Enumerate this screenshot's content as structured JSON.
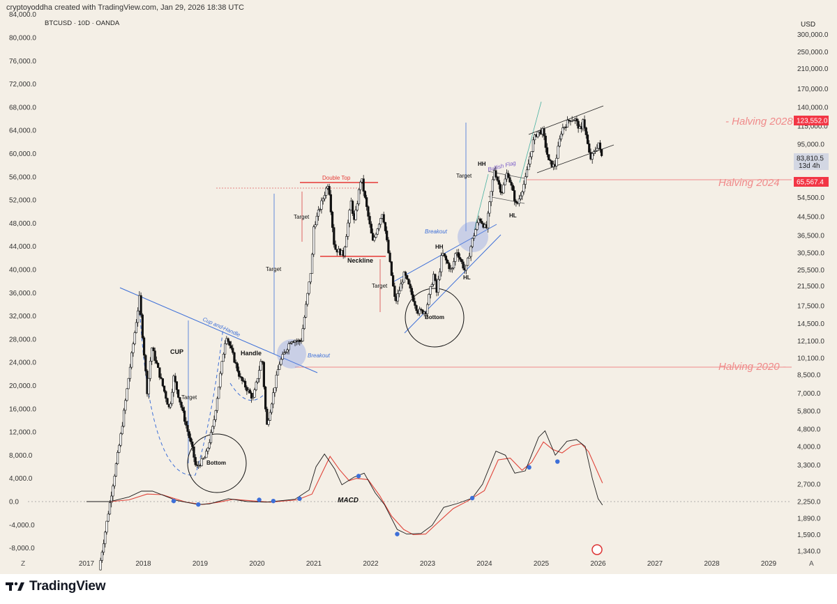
{
  "header": {
    "credit": "cryptoyoddha created with TradingView.com, Jan 29, 2026 18:38 UTC",
    "symbol": "BTCUSD · 10D · OANDA",
    "currency": "USD",
    "corner_left": "Z",
    "corner_right": "A"
  },
  "brand": {
    "name": "TradingView"
  },
  "colors": {
    "background": "#f4efe6",
    "candle_up": "#ffffff",
    "candle_down": "#111111",
    "macd_line": "#1a1a1a",
    "signal_line": "#e0443a",
    "trendline": "#3d6fd8",
    "halving_line": "#f08a8a",
    "price_badge": "#f23645",
    "double_top": "#e53935"
  },
  "chart_data": {
    "type": "candlestick",
    "title": "BTCUSD · 10D · OANDA",
    "left_axis": {
      "ticks": [
        "84,000.0",
        "80,000.0",
        "76,000.0",
        "72,000.0",
        "68,000.0",
        "64,000.0",
        "60,000.0",
        "56,000.0",
        "52,000.0",
        "48,000.0",
        "44,000.0",
        "40,000.0",
        "36,000.0",
        "32,000.0",
        "28,000.0",
        "24,000.0",
        "20,000.0",
        "16,000.0",
        "12,000.0",
        "8,000.0",
        "4,000.0",
        "0.0",
        "-4,000.0",
        "-8,000.0"
      ]
    },
    "right_axis": {
      "scale": "log",
      "ticks": [
        "300,000.0",
        "250,000.0",
        "210,000.0",
        "170,000.0",
        "140,000.0",
        "115,000.0",
        "95,000.0",
        "65,500.0",
        "54,500.0",
        "44,500.0",
        "36,500.0",
        "30,500.0",
        "25,500.0",
        "21,500.0",
        "17,500.0",
        "14,500.0",
        "12,100.0",
        "10,100.0",
        "8,500.0",
        "7,000.0",
        "5,800.0",
        "4,800.0",
        "4,000.0",
        "3,300.0",
        "2,700.0",
        "2,250.0",
        "1,890.0",
        "1,590.0",
        "1,340.0"
      ]
    },
    "x_axis": {
      "ticks": [
        "2017",
        "2018",
        "2019",
        "2020",
        "2021",
        "2022",
        "2023",
        "2024",
        "2025",
        "2026",
        "2027",
        "2028",
        "2029"
      ]
    },
    "price_badges": [
      {
        "value": "123,552.0",
        "kind": "high"
      },
      {
        "value": "83,810.5",
        "sub": "13d 4h",
        "kind": "last"
      },
      {
        "value": "65,567.4",
        "kind": "level"
      }
    ],
    "halvings": [
      {
        "label": "Halving 2020",
        "price": 9200
      },
      {
        "label": "Halving 2024",
        "price": 65567.4
      },
      {
        "label": "Halving 2028",
        "price": 123552
      }
    ],
    "annotations": [
      {
        "text": "CUP"
      },
      {
        "text": "Handle"
      },
      {
        "text": "Cup and Handle"
      },
      {
        "text": "Target"
      },
      {
        "text": "Bottom"
      },
      {
        "text": "Breakout"
      },
      {
        "text": "Target"
      },
      {
        "text": "Target"
      },
      {
        "text": "Double Top"
      },
      {
        "text": "Neckline"
      },
      {
        "text": "Target"
      },
      {
        "text": "Bottom"
      },
      {
        "text": "HH"
      },
      {
        "text": "HL"
      },
      {
        "text": "Breakout"
      },
      {
        "text": "Target"
      },
      {
        "text": "HH"
      },
      {
        "text": "Bullish Flag"
      },
      {
        "text": "HL"
      },
      {
        "text": "MACD"
      }
    ],
    "price_anchors": [
      [
        "2017-04-01",
        1100
      ],
      [
        "2017-08-15",
        4300
      ],
      [
        "2017-12-17",
        19000
      ],
      [
        "2018-02-06",
        7000
      ],
      [
        "2018-03-05",
        11400
      ],
      [
        "2018-06-28",
        5900
      ],
      [
        "2018-07-25",
        8300
      ],
      [
        "2018-11-25",
        3800
      ],
      [
        "2018-12-15",
        3200
      ],
      [
        "2019-02-15",
        3600
      ],
      [
        "2019-04-05",
        5000
      ],
      [
        "2019-06-26",
        13000
      ],
      [
        "2019-09-25",
        8200
      ],
      [
        "2019-12-17",
        6600
      ],
      [
        "2020-02-12",
        10300
      ],
      [
        "2020-03-13",
        4900
      ],
      [
        "2020-06-01",
        9500
      ],
      [
        "2020-08-17",
        12300
      ],
      [
        "2020-10-20",
        12000
      ],
      [
        "2020-12-28",
        27000
      ],
      [
        "2021-01-10",
        40000
      ],
      [
        "2021-04-14",
        64000
      ],
      [
        "2021-05-23",
        32000
      ],
      [
        "2021-07-20",
        30000
      ],
      [
        "2021-09-07",
        52000
      ],
      [
        "2021-09-28",
        42000
      ],
      [
        "2021-11-10",
        68000
      ],
      [
        "2022-01-24",
        34000
      ],
      [
        "2022-03-28",
        47000
      ],
      [
        "2022-05-12",
        28000
      ],
      [
        "2022-06-18",
        18000
      ],
      [
        "2022-08-15",
        24500
      ],
      [
        "2022-11-09",
        16500
      ],
      [
        "2022-12-30",
        16500
      ],
      [
        "2023-02-20",
        24500
      ],
      [
        "2023-03-10",
        20000
      ],
      [
        "2023-04-14",
        30500
      ],
      [
        "2023-06-15",
        25000
      ],
      [
        "2023-07-14",
        31500
      ],
      [
        "2023-09-11",
        25000
      ],
      [
        "2023-10-24",
        34500
      ],
      [
        "2023-12-08",
        44000
      ],
      [
        "2024-01-23",
        39000
      ],
      [
        "2024-03-14",
        73000
      ],
      [
        "2024-05-01",
        57000
      ],
      [
        "2024-06-07",
        71500
      ],
      [
        "2024-08-05",
        49500
      ],
      [
        "2024-09-30",
        65500
      ],
      [
        "2024-11-22",
        99500
      ],
      [
        "2024-12-17",
        108000
      ],
      [
        "2025-01-20",
        109000
      ],
      [
        "2025-02-28",
        79000
      ],
      [
        "2025-04-07",
        75000
      ],
      [
        "2025-05-22",
        111000
      ],
      [
        "2025-07-14",
        123552
      ],
      [
        "2025-08-14",
        124000
      ],
      [
        "2025-09-25",
        108000
      ],
      [
        "2025-10-06",
        126000
      ],
      [
        "2025-11-21",
        81000
      ],
      [
        "2025-12-20",
        88000
      ],
      [
        "2026-01-15",
        97000
      ],
      [
        "2026-01-29",
        83810.5
      ]
    ],
    "macd_anchors": [
      [
        "2017-01-01",
        0
      ],
      [
        "2017-06-01",
        0
      ],
      [
        "2017-10-01",
        800
      ],
      [
        "2017-12-20",
        1800
      ],
      [
        "2018-03-01",
        1800
      ],
      [
        "2018-08-01",
        200
      ],
      [
        "2018-12-20",
        -500
      ],
      [
        "2019-03-01",
        -400
      ],
      [
        "2019-07-01",
        500
      ],
      [
        "2019-11-01",
        0
      ],
      [
        "2020-03-01",
        -100
      ],
      [
        "2020-09-01",
        400
      ],
      [
        "2020-12-01",
        2000
      ],
      [
        "2021-01-15",
        6000
      ],
      [
        "2021-03-10",
        8200
      ],
      [
        "2021-05-15",
        5600
      ],
      [
        "2021-06-30",
        2900
      ],
      [
        "2021-09-15",
        4200
      ],
      [
        "2021-11-20",
        4900
      ],
      [
        "2022-01-30",
        1500
      ],
      [
        "2022-03-30",
        -500
      ],
      [
        "2022-06-20",
        -4800
      ],
      [
        "2022-08-20",
        -5600
      ],
      [
        "2022-11-20",
        -5500
      ],
      [
        "2023-01-30",
        -4100
      ],
      [
        "2023-04-15",
        -1000
      ],
      [
        "2023-07-15",
        -300
      ],
      [
        "2023-10-15",
        600
      ],
      [
        "2023-12-20",
        3000
      ],
      [
        "2024-03-15",
        8700
      ],
      [
        "2024-05-15",
        8000
      ],
      [
        "2024-07-15",
        4900
      ],
      [
        "2024-09-20",
        5300
      ],
      [
        "2024-12-15",
        11100
      ],
      [
        "2025-01-25",
        12200
      ],
      [
        "2025-04-01",
        8000
      ],
      [
        "2025-06-15",
        10400
      ],
      [
        "2025-08-15",
        10700
      ],
      [
        "2025-10-10",
        9500
      ],
      [
        "2025-11-25",
        4000
      ],
      [
        "2026-01-01",
        500
      ],
      [
        "2026-01-29",
        -600
      ]
    ],
    "signal_anchors": [
      [
        "2017-01-01",
        0
      ],
      [
        "2017-06-01",
        0
      ],
      [
        "2017-10-01",
        300
      ],
      [
        "2018-01-25",
        1300
      ],
      [
        "2018-05-01",
        1200
      ],
      [
        "2018-10-01",
        -100
      ],
      [
        "2019-01-15",
        -500
      ],
      [
        "2019-05-01",
        -100
      ],
      [
        "2019-08-01",
        400
      ],
      [
        "2019-12-15",
        100
      ],
      [
        "2020-03-25",
        -100
      ],
      [
        "2020-09-15",
        300
      ],
      [
        "2020-12-20",
        1300
      ],
      [
        "2021-02-15",
        4500
      ],
      [
        "2021-04-15",
        7800
      ],
      [
        "2021-06-15",
        5500
      ],
      [
        "2021-08-15",
        3600
      ],
      [
        "2021-10-01",
        4000
      ],
      [
        "2021-12-15",
        3800
      ],
      [
        "2022-02-28",
        1000
      ],
      [
        "2022-05-15",
        -2500
      ],
      [
        "2022-08-01",
        -4800
      ],
      [
        "2022-10-01",
        -5700
      ],
      [
        "2022-12-20",
        -5600
      ],
      [
        "2023-03-01",
        -3800
      ],
      [
        "2023-06-15",
        -1200
      ],
      [
        "2023-09-15",
        100
      ],
      [
        "2024-01-01",
        1900
      ],
      [
        "2024-03-30",
        7200
      ],
      [
        "2024-06-15",
        7500
      ],
      [
        "2024-08-30",
        5400
      ],
      [
        "2024-11-01",
        6800
      ],
      [
        "2025-01-15",
        10300
      ],
      [
        "2025-03-15",
        9000
      ],
      [
        "2025-05-15",
        8400
      ],
      [
        "2025-07-15",
        9600
      ],
      [
        "2025-09-15",
        10000
      ],
      [
        "2025-11-01",
        8600
      ],
      [
        "2026-01-29",
        3200
      ]
    ],
    "macd_markers": [
      [
        "2018-07-15",
        100
      ],
      [
        "2018-12-20",
        -500
      ],
      [
        "2020-01-15",
        300
      ],
      [
        "2020-04-15",
        100
      ],
      [
        "2020-10-01",
        500
      ],
      [
        "2021-10-15",
        4400
      ],
      [
        "2022-06-20",
        -5600
      ],
      [
        "2023-10-15",
        600
      ],
      [
        "2024-10-15",
        5900
      ],
      [
        "2025-04-15",
        6900
      ]
    ],
    "grid": false
  }
}
